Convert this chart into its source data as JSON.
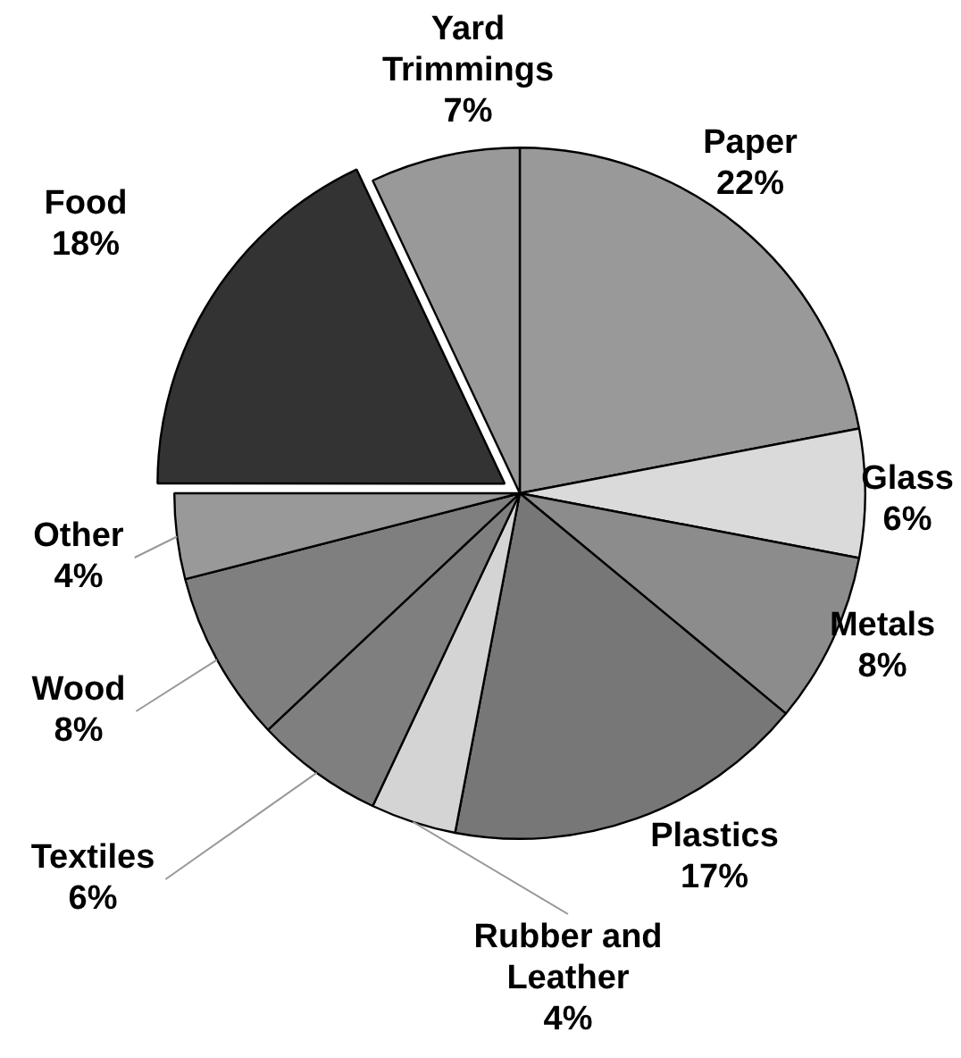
{
  "chart_data": {
    "type": "pie",
    "categories": [
      "Paper",
      "Glass",
      "Metals",
      "Plastics",
      "Rubber and Leather",
      "Textiles",
      "Wood",
      "Other",
      "Food",
      "Yard Trimmings"
    ],
    "values": [
      22,
      6,
      8,
      17,
      4,
      6,
      8,
      4,
      18,
      7
    ],
    "value_labels": [
      "22%",
      "6%",
      "8%",
      "17%",
      "4%",
      "6%",
      "8%",
      "4%",
      "18%",
      "7%"
    ],
    "colors": [
      "#999999",
      "#dadada",
      "#8c8c8c",
      "#777777",
      "#d4d4d4",
      "#7f7f7f",
      "#7f7f7f",
      "#999999",
      "#333333",
      "#999999"
    ],
    "legend": false
  }
}
